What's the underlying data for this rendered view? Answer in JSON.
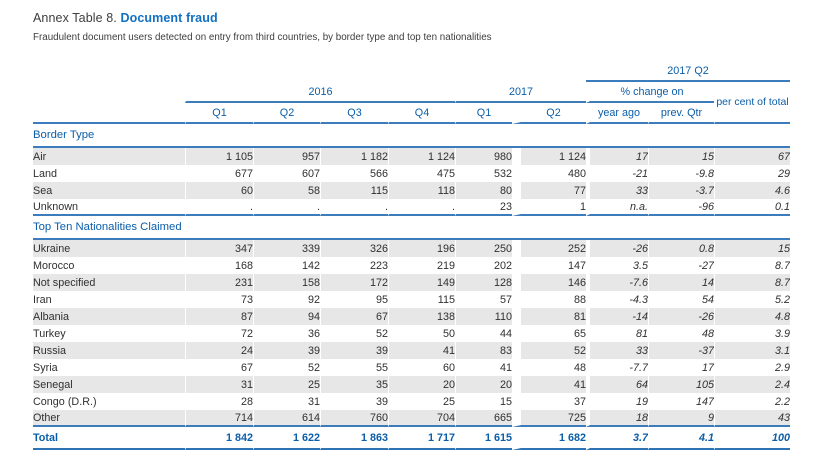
{
  "accent": {
    "title_blue": "#1170c2",
    "table_blue": "#0b5ea9",
    "line_blue": "#3c7cbc",
    "row_shade": "#e7e7e7",
    "body_text": "#303030"
  },
  "doc": {
    "title_prefix": "Annex Table 8.",
    "title_emphasis": "Document fraud",
    "subtitle": "Fraudulent document users detected on entry from third countries, by border type and top ten nationalities"
  },
  "table": {
    "col_headers": {
      "group_2017_q2": "2017 Q2",
      "group_2016": "2016",
      "group_2017": "2017",
      "pct_change_on": "% change on",
      "quarters_2016": [
        "Q1",
        "Q2",
        "Q3",
        "Q4"
      ],
      "quarters_2017": [
        "Q1",
        "Q2"
      ],
      "year_ago": "year ago",
      "prev_qtr": "prev. Qtr",
      "pct_of_total": "per cent of total"
    },
    "sections": [
      {
        "title": "Border Type",
        "rows": [
          {
            "label": "Air",
            "values": [
              "1 105",
              "957",
              "1 182",
              "1 124",
              "980",
              "1 124",
              "17",
              "15",
              "67"
            ],
            "shaded": true
          },
          {
            "label": "Land",
            "values": [
              "677",
              "607",
              "566",
              "475",
              "532",
              "480",
              "-21",
              "-9.8",
              "29"
            ],
            "shaded": false
          },
          {
            "label": "Sea",
            "values": [
              "60",
              "58",
              "115",
              "118",
              "80",
              "77",
              "33",
              "-3.7",
              "4.6"
            ],
            "shaded": true
          },
          {
            "label": "Unknown",
            "values": [
              ".",
              ".",
              ".",
              ".",
              "23",
              "1",
              "n.a.",
              "-96",
              "0.1"
            ],
            "shaded": false
          }
        ]
      },
      {
        "title": "Top Ten Nationalities Claimed",
        "rows": [
          {
            "label": "Ukraine",
            "values": [
              "347",
              "339",
              "326",
              "196",
              "250",
              "252",
              "-26",
              "0.8",
              "15"
            ],
            "shaded": true
          },
          {
            "label": "Morocco",
            "values": [
              "168",
              "142",
              "223",
              "219",
              "202",
              "147",
              "3.5",
              "-27",
              "8.7"
            ],
            "shaded": false
          },
          {
            "label": "Not specified",
            "values": [
              "231",
              "158",
              "172",
              "149",
              "128",
              "146",
              "-7.6",
              "14",
              "8.7"
            ],
            "shaded": true
          },
          {
            "label": "Iran",
            "values": [
              "73",
              "92",
              "95",
              "115",
              "57",
              "88",
              "-4.3",
              "54",
              "5.2"
            ],
            "shaded": false
          },
          {
            "label": "Albania",
            "values": [
              "87",
              "94",
              "67",
              "138",
              "110",
              "81",
              "-14",
              "-26",
              "4.8"
            ],
            "shaded": true
          },
          {
            "label": "Turkey",
            "values": [
              "72",
              "36",
              "52",
              "50",
              "44",
              "65",
              "81",
              "48",
              "3.9"
            ],
            "shaded": false
          },
          {
            "label": "Russia",
            "values": [
              "24",
              "39",
              "39",
              "41",
              "83",
              "52",
              "33",
              "-37",
              "3.1"
            ],
            "shaded": true
          },
          {
            "label": "Syria",
            "values": [
              "67",
              "52",
              "55",
              "60",
              "41",
              "48",
              "-7.7",
              "17",
              "2.9"
            ],
            "shaded": false
          },
          {
            "label": "Senegal",
            "values": [
              "31",
              "25",
              "35",
              "20",
              "20",
              "41",
              "64",
              "105",
              "2.4"
            ],
            "shaded": true
          },
          {
            "label": "Congo (D.R.)",
            "values": [
              "28",
              "31",
              "39",
              "25",
              "15",
              "37",
              "19",
              "147",
              "2.2"
            ],
            "shaded": false
          },
          {
            "label": "Other",
            "values": [
              "714",
              "614",
              "760",
              "704",
              "665",
              "725",
              "18",
              "9",
              "43"
            ],
            "shaded": true
          }
        ]
      }
    ],
    "total": {
      "label": "Total",
      "values": [
        "1 842",
        "1 622",
        "1 863",
        "1 717",
        "1 615",
        "1 682",
        "3.7",
        "4.1",
        "100"
      ]
    }
  }
}
